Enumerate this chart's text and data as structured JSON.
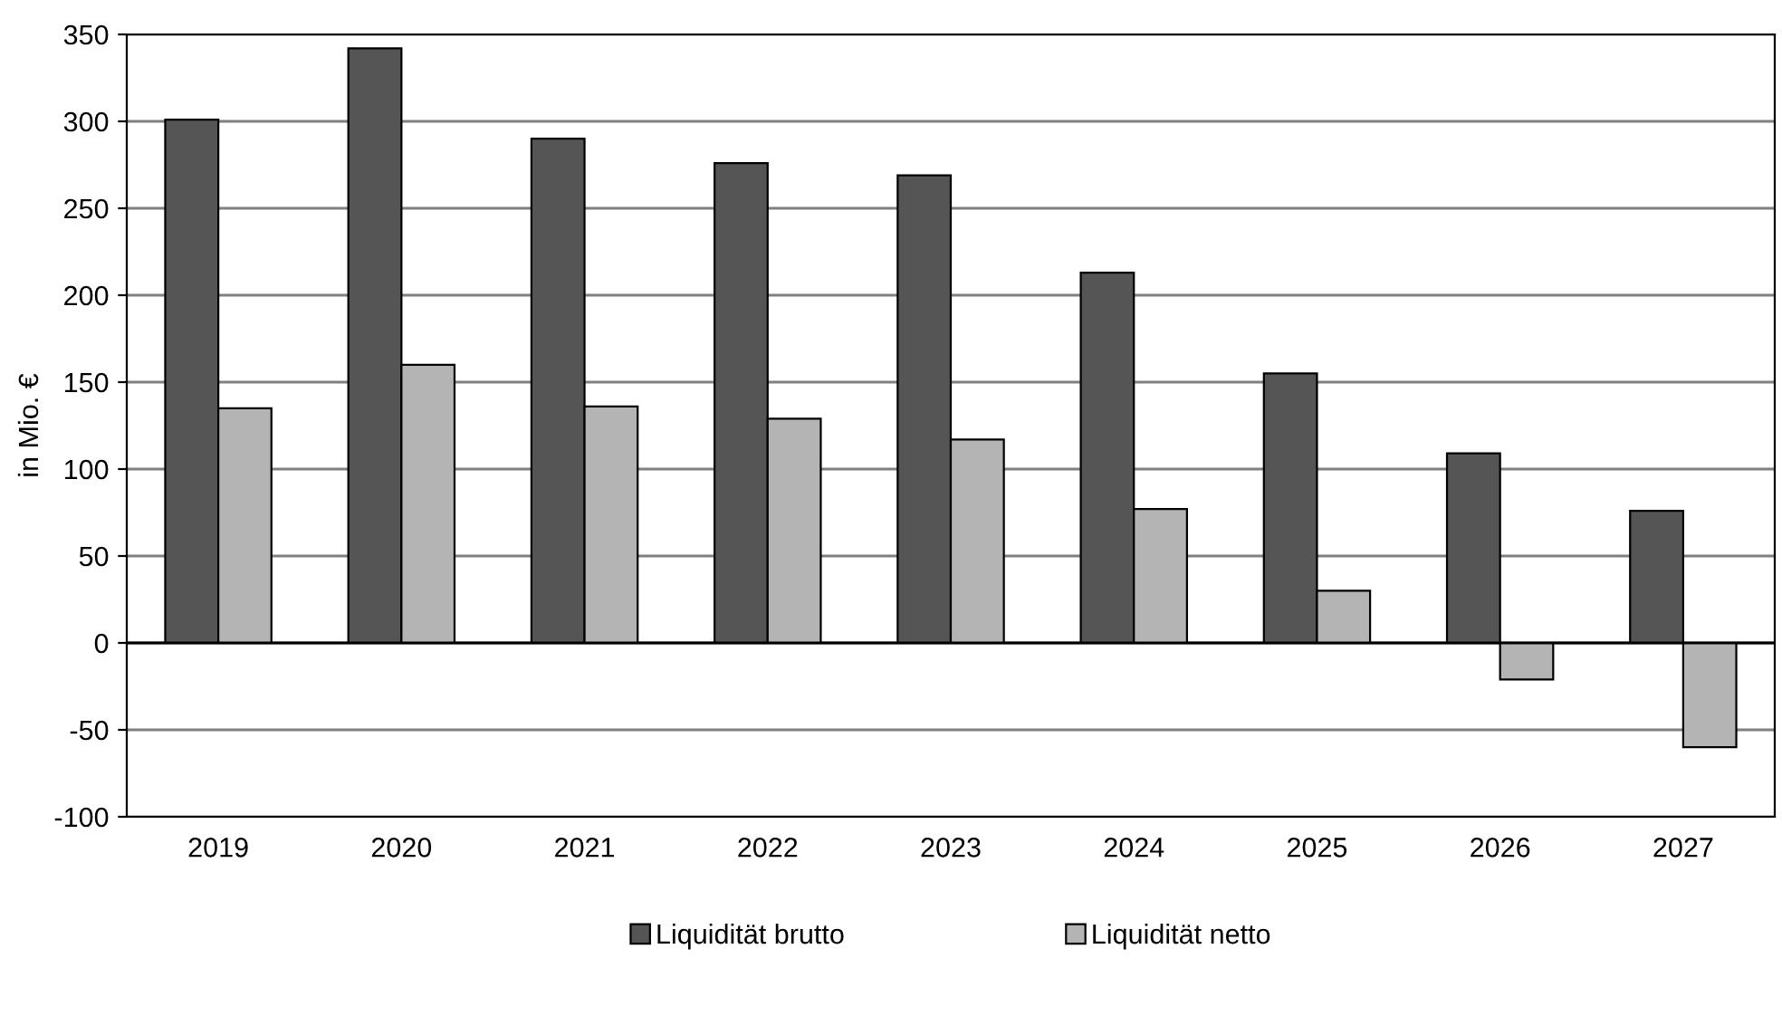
{
  "chart_data": {
    "type": "bar",
    "ylabel": "in Mio. €",
    "categories": [
      "2019",
      "2020",
      "2021",
      "2022",
      "2023",
      "2024",
      "2025",
      "2026",
      "2027"
    ],
    "series": [
      {
        "name": "Liquidität brutto",
        "color": "#555555",
        "values": [
          301,
          342,
          290,
          276,
          269,
          213,
          155,
          109,
          76
        ]
      },
      {
        "name": "Liquidität netto",
        "color": "#b4b4b4",
        "values": [
          135,
          160,
          136,
          129,
          117,
          77,
          30,
          -21,
          -60
        ]
      }
    ],
    "ylim": [
      -100,
      350
    ],
    "yticks": [
      -100,
      -50,
      0,
      50,
      100,
      150,
      200,
      250,
      300,
      350
    ],
    "grid": "y",
    "legend": "bottom"
  }
}
